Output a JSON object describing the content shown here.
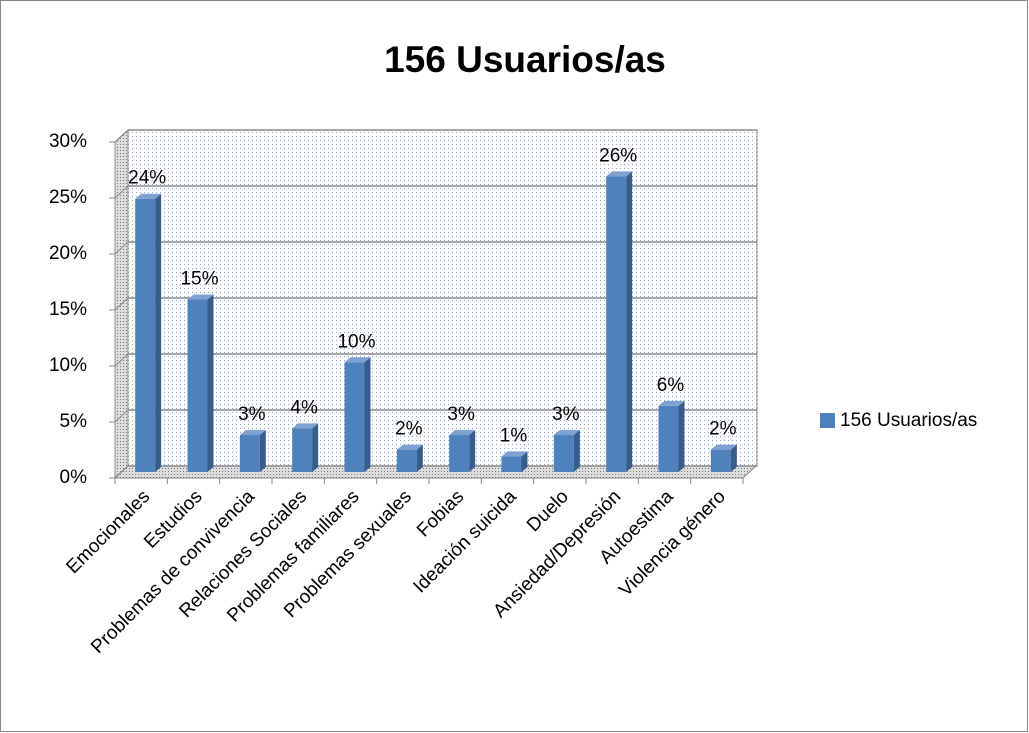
{
  "chart_data": {
    "type": "bar",
    "title": "156 Usuarios/as",
    "categories": [
      "Emocionales",
      "Estudios",
      "Problemas de convivencia",
      "Relaciones Sociales",
      "Problemas familiares",
      "Problemas sexuales",
      "Fobias",
      "Ideación suicida",
      "Duelo",
      "Ansiedad/Depresión",
      "Autoestima",
      "Violencia género"
    ],
    "series": [
      {
        "name": "156 Usuarios/as",
        "color": "#4f81bd",
        "values": [
          24.4,
          15.4,
          3.3,
          3.9,
          9.8,
          2.0,
          3.3,
          1.4,
          3.3,
          26.4,
          5.9,
          2.0
        ],
        "value_labels": [
          "24%",
          "15%",
          "3%",
          "4%",
          "10%",
          "2%",
          "3%",
          "1%",
          "3%",
          "26%",
          "6%",
          "2%"
        ]
      }
    ],
    "ylim": [
      0,
      30
    ],
    "yticks": [
      {
        "value": 0,
        "label": "0%"
      },
      {
        "value": 5,
        "label": "5%"
      },
      {
        "value": 10,
        "label": "10%"
      },
      {
        "value": 15,
        "label": "15%"
      },
      {
        "value": 20,
        "label": "20%"
      },
      {
        "value": 25,
        "label": "25%"
      },
      {
        "value": 30,
        "label": "30%"
      }
    ],
    "grid": true,
    "legend": "right"
  }
}
